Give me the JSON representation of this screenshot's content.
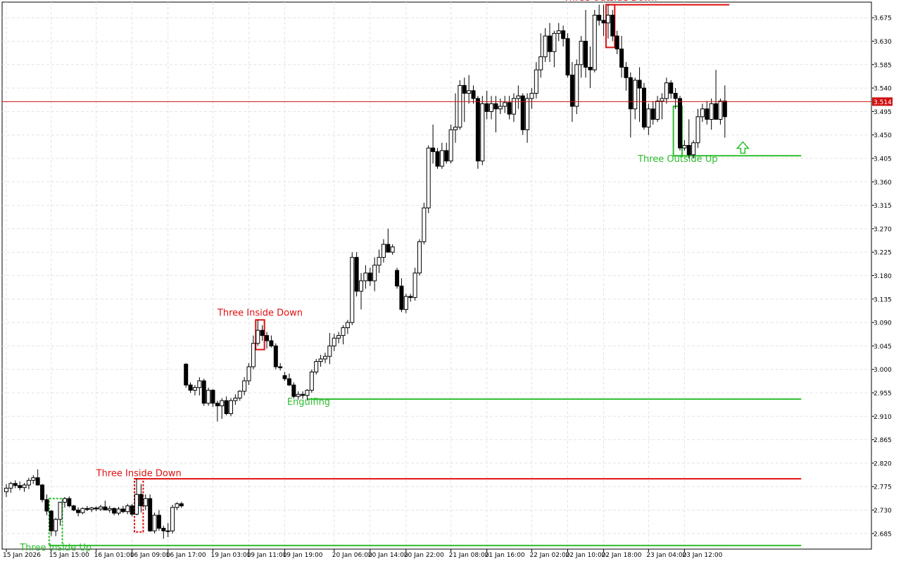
{
  "chart_data": {
    "type": "candlestick",
    "ylim": [
      2.655,
      3.705
    ],
    "grid": true,
    "y_ticks": [
      "3.675",
      "3.630",
      "3.585",
      "3.540",
      "3.495",
      "3.450",
      "3.405",
      "3.360",
      "3.315",
      "3.270",
      "3.225",
      "3.180",
      "3.135",
      "3.090",
      "3.045",
      "3.000",
      "2.955",
      "2.910",
      "2.865",
      "2.820",
      "2.775",
      "2.730",
      "2.685"
    ],
    "x_ticks": [
      {
        "label": "15 Jan 2026",
        "index": 0
      },
      {
        "label": "15 Jan 15:00",
        "index": 10
      },
      {
        "label": "16 Jan 01:00",
        "index": 20
      },
      {
        "label": "16 Jan 09:00",
        "index": 28
      },
      {
        "label": "16 Jan 17:00",
        "index": 36
      },
      {
        "label": "19 Jan 03:00",
        "index": 46
      },
      {
        "label": "19 Jan 11:00",
        "index": 54
      },
      {
        "label": "19 Jan 19:00",
        "index": 62
      },
      {
        "label": "20 Jan 06:00",
        "index": 73
      },
      {
        "label": "20 Jan 14:00",
        "index": 81
      },
      {
        "label": "20 Jan 22:00",
        "index": 89
      },
      {
        "label": "21 Jan 08:00",
        "index": 99
      },
      {
        "label": "21 Jan 16:00",
        "index": 107
      },
      {
        "label": "22 Jan 02:00",
        "index": 117
      },
      {
        "label": "22 Jan 10:00",
        "index": 125
      },
      {
        "label": "22 Jan 18:00",
        "index": 133
      },
      {
        "label": "23 Jan 04:00",
        "index": 143
      },
      {
        "label": "23 Jan 12:00",
        "index": 151
      }
    ],
    "current_price": "3.514",
    "candles": [
      [
        2.765,
        2.78,
        2.755,
        2.772
      ],
      [
        2.772,
        2.784,
        2.763,
        2.781
      ],
      [
        2.781,
        2.787,
        2.772,
        2.777
      ],
      [
        2.777,
        2.785,
        2.768,
        2.773
      ],
      [
        2.773,
        2.782,
        2.765,
        2.778
      ],
      [
        2.778,
        2.792,
        2.77,
        2.787
      ],
      [
        2.787,
        2.797,
        2.78,
        2.792
      ],
      [
        2.792,
        2.808,
        2.777,
        2.778
      ],
      [
        2.778,
        2.78,
        2.745,
        2.75
      ],
      [
        2.75,
        2.76,
        2.72,
        2.728
      ],
      [
        2.728,
        2.73,
        2.68,
        2.69
      ],
      [
        2.69,
        2.715,
        2.68,
        2.712
      ],
      [
        2.712,
        2.735,
        2.7,
        2.745
      ],
      [
        2.745,
        2.755,
        2.735,
        2.752
      ],
      [
        2.752,
        2.756,
        2.735,
        2.738
      ],
      [
        2.738,
        2.74,
        2.728,
        2.73
      ],
      [
        2.73,
        2.735,
        2.718,
        2.725
      ],
      [
        2.725,
        2.735,
        2.722,
        2.733
      ],
      [
        2.733,
        2.738,
        2.728,
        2.731
      ],
      [
        2.731,
        2.736,
        2.726,
        2.734
      ],
      [
        2.734,
        2.737,
        2.728,
        2.732
      ],
      [
        2.732,
        2.74,
        2.728,
        2.736
      ],
      [
        2.736,
        2.748,
        2.73,
        2.73
      ],
      [
        2.73,
        2.738,
        2.725,
        2.733
      ],
      [
        2.733,
        2.735,
        2.72,
        2.724
      ],
      [
        2.724,
        2.736,
        2.72,
        2.732
      ],
      [
        2.732,
        2.738,
        2.724,
        2.727
      ],
      [
        2.727,
        2.742,
        2.722,
        2.738
      ],
      [
        2.738,
        2.742,
        2.718,
        2.722
      ],
      [
        2.722,
        2.79,
        2.72,
        2.76
      ],
      [
        2.76,
        2.78,
        2.725,
        2.738
      ],
      [
        2.738,
        2.76,
        2.73,
        2.752
      ],
      [
        2.752,
        2.76,
        2.688,
        2.69
      ],
      [
        2.69,
        2.725,
        2.685,
        2.72
      ],
      [
        2.72,
        2.73,
        2.69,
        2.695
      ],
      [
        2.695,
        2.7,
        2.675,
        2.69
      ],
      [
        2.69,
        2.705,
        2.678,
        2.69
      ],
      [
        2.69,
        2.74,
        2.685,
        2.735
      ],
      [
        2.735,
        2.745,
        2.73,
        2.742
      ],
      [
        2.742,
        2.746,
        2.734,
        2.738
      ],
      [
        3.01,
        3.012,
        2.965,
        2.97
      ],
      [
        2.97,
        2.975,
        2.955,
        2.96
      ],
      [
        2.96,
        2.97,
        2.95,
        2.965
      ],
      [
        2.965,
        2.985,
        2.95,
        2.978
      ],
      [
        2.978,
        2.982,
        2.93,
        2.935
      ],
      [
        2.935,
        2.965,
        2.93,
        2.96
      ],
      [
        2.96,
        2.962,
        2.928,
        2.935
      ],
      [
        2.935,
        2.94,
        2.9,
        2.93
      ],
      [
        2.93,
        2.945,
        2.905,
        2.94
      ],
      [
        2.94,
        2.948,
        2.912,
        2.915
      ],
      [
        2.915,
        2.945,
        2.91,
        2.94
      ],
      [
        2.94,
        2.952,
        2.932,
        2.945
      ],
      [
        2.945,
        2.96,
        2.94,
        2.958
      ],
      [
        2.958,
        2.985,
        2.95,
        2.978
      ],
      [
        2.978,
        3.012,
        2.97,
        3.005
      ],
      [
        3.005,
        3.065,
        3.0,
        3.05
      ],
      [
        3.05,
        3.095,
        3.045,
        3.075
      ],
      [
        3.075,
        3.085,
        3.055,
        3.065
      ],
      [
        3.065,
        3.072,
        3.04,
        3.055
      ],
      [
        3.055,
        3.065,
        3.042,
        3.045
      ],
      [
        3.045,
        3.05,
        3.0,
        3.005
      ],
      [
        3.005,
        3.012,
        2.998,
        3.003
      ],
      [
        2.988,
        2.995,
        2.978,
        2.982
      ],
      [
        2.982,
        2.992,
        2.968,
        2.97
      ],
      [
        2.97,
        2.975,
        2.944,
        2.948
      ],
      [
        2.948,
        2.958,
        2.942,
        2.952
      ],
      [
        2.952,
        2.958,
        2.944,
        2.95
      ],
      [
        2.95,
        2.962,
        2.94,
        2.96
      ],
      [
        2.96,
        3.0,
        2.955,
        2.995
      ],
      [
        2.995,
        3.02,
        2.99,
        3.015
      ],
      [
        3.015,
        3.028,
        3.005,
        3.02
      ],
      [
        3.02,
        3.032,
        3.012,
        3.025
      ],
      [
        3.025,
        3.07,
        3.01,
        3.045
      ],
      [
        3.045,
        3.068,
        3.035,
        3.06
      ],
      [
        3.06,
        3.072,
        3.05,
        3.065
      ],
      [
        3.065,
        3.085,
        3.048,
        3.08
      ],
      [
        3.08,
        3.095,
        3.068,
        3.09
      ],
      [
        3.09,
        3.225,
        3.085,
        3.215
      ],
      [
        3.215,
        3.225,
        3.14,
        3.15
      ],
      [
        3.15,
        3.185,
        3.115,
        3.17
      ],
      [
        3.17,
        3.2,
        3.155,
        3.185
      ],
      [
        3.185,
        3.195,
        3.16,
        3.17
      ],
      [
        3.17,
        3.215,
        3.15,
        3.2
      ],
      [
        3.2,
        3.23,
        3.185,
        3.215
      ],
      [
        3.215,
        3.25,
        3.205,
        3.24
      ],
      [
        3.24,
        3.27,
        3.23,
        3.225
      ],
      [
        3.225,
        3.24,
        3.22,
        3.235
      ],
      [
        3.19,
        3.195,
        3.155,
        3.16
      ],
      [
        3.16,
        3.175,
        3.11,
        3.115
      ],
      [
        3.115,
        3.145,
        3.108,
        3.14
      ],
      [
        3.14,
        3.145,
        3.13,
        3.138
      ],
      [
        3.138,
        3.195,
        3.132,
        3.185
      ],
      [
        3.185,
        3.25,
        3.18,
        3.245
      ],
      [
        3.245,
        3.32,
        3.24,
        3.31
      ],
      [
        3.31,
        3.43,
        3.3,
        3.425
      ],
      [
        3.425,
        3.47,
        3.395,
        3.418
      ],
      [
        3.418,
        3.425,
        3.385,
        3.39
      ],
      [
        3.39,
        3.435,
        3.385,
        3.42
      ],
      [
        3.42,
        3.435,
        3.395,
        3.4
      ],
      [
        3.4,
        3.47,
        3.395,
        3.46
      ],
      [
        3.46,
        3.53,
        3.435,
        3.465
      ],
      [
        3.465,
        3.555,
        3.46,
        3.545
      ],
      [
        3.545,
        3.56,
        3.475,
        3.53
      ],
      [
        3.53,
        3.565,
        3.51,
        3.535
      ],
      [
        3.535,
        3.545,
        3.51,
        3.52
      ],
      [
        3.52,
        3.525,
        3.385,
        3.4
      ],
      [
        3.4,
        3.525,
        3.392,
        3.51
      ],
      [
        3.51,
        3.535,
        3.48,
        3.495
      ],
      [
        3.495,
        3.525,
        3.48,
        3.51
      ],
      [
        3.51,
        3.525,
        3.455,
        3.5
      ],
      [
        3.5,
        3.52,
        3.49,
        3.505
      ],
      [
        3.505,
        3.525,
        3.492,
        3.512
      ],
      [
        3.512,
        3.525,
        3.48,
        3.49
      ],
      [
        3.49,
        3.53,
        3.475,
        3.52
      ],
      [
        3.52,
        3.545,
        3.5,
        3.525
      ],
      [
        3.525,
        3.53,
        3.45,
        3.46
      ],
      [
        3.46,
        3.53,
        3.435,
        3.52
      ],
      [
        3.52,
        3.54,
        3.5,
        3.53
      ],
      [
        3.53,
        3.59,
        3.52,
        3.575
      ],
      [
        3.575,
        3.645,
        3.56,
        3.6
      ],
      [
        3.6,
        3.655,
        3.59,
        3.64
      ],
      [
        3.64,
        3.665,
        3.59,
        3.61
      ],
      [
        3.61,
        3.65,
        3.58,
        3.645
      ],
      [
        3.645,
        3.665,
        3.63,
        3.65
      ],
      [
        3.65,
        3.66,
        3.62,
        3.635
      ],
      [
        3.635,
        3.645,
        3.56,
        3.565
      ],
      [
        3.565,
        3.59,
        3.475,
        3.505
      ],
      [
        3.505,
        3.595,
        3.49,
        3.585
      ],
      [
        3.585,
        3.64,
        3.56,
        3.63
      ],
      [
        3.63,
        3.69,
        3.56,
        3.58
      ],
      [
        3.58,
        3.62,
        3.54,
        3.575
      ],
      [
        3.575,
        3.69,
        3.57,
        3.68
      ],
      [
        3.68,
        3.7,
        3.66,
        3.67
      ],
      [
        3.67,
        3.7,
        3.64,
        3.665
      ],
      [
        3.665,
        3.7,
        3.635,
        3.68
      ],
      [
        3.68,
        3.69,
        3.63,
        3.64
      ],
      [
        3.64,
        3.65,
        3.605,
        3.615
      ],
      [
        3.615,
        3.64,
        3.56,
        3.58
      ],
      [
        3.58,
        3.59,
        3.535,
        3.56
      ],
      [
        3.56,
        3.57,
        3.445,
        3.5
      ],
      [
        3.5,
        3.56,
        3.48,
        3.555
      ],
      [
        3.555,
        3.58,
        3.475,
        3.54
      ],
      [
        3.54,
        3.55,
        3.46,
        3.465
      ],
      [
        3.465,
        3.51,
        3.45,
        3.5
      ],
      [
        3.5,
        3.515,
        3.47,
        3.48
      ],
      [
        3.48,
        3.525,
        3.475,
        3.515
      ],
      [
        3.515,
        3.53,
        3.48,
        3.52
      ],
      [
        3.52,
        3.56,
        3.51,
        3.55
      ],
      [
        3.55,
        3.555,
        3.52,
        3.53
      ],
      [
        3.53,
        3.54,
        3.5,
        3.52
      ],
      [
        3.52,
        3.525,
        3.42,
        3.425
      ],
      [
        3.425,
        3.44,
        3.42,
        3.43
      ],
      [
        3.43,
        3.48,
        3.405,
        3.412
      ],
      [
        3.412,
        3.44,
        3.405,
        3.435
      ],
      [
        3.435,
        3.5,
        3.425,
        3.485
      ],
      [
        3.485,
        3.51,
        3.475,
        3.5
      ],
      [
        3.5,
        3.515,
        3.47,
        3.48
      ],
      [
        3.48,
        3.52,
        3.46,
        3.51
      ],
      [
        3.51,
        3.575,
        3.485,
        3.48
      ],
      [
        3.48,
        3.52,
        3.47,
        3.515
      ],
      [
        3.515,
        3.545,
        3.445,
        3.485
      ]
    ],
    "annotations": [
      {
        "text": "Three Outside Down",
        "color": "#e01010",
        "box_from": 134,
        "box_to": 135,
        "box_lo": 3.618,
        "box_hi": 3.7,
        "line_to": 161,
        "line_y": 3.7,
        "label_y": 3.708
      },
      {
        "text": "Three Outside Up",
        "color": "#2ebd2e",
        "box_from": 149,
        "box_to": 150,
        "box_lo": 3.41,
        "box_hi": 3.505,
        "line_to": 177,
        "line_y": 3.41,
        "label_y": 3.398
      },
      {
        "text": "Three Inside Down",
        "color": "#e01010",
        "box_from": 56,
        "box_to": 57,
        "box_lo": 3.038,
        "box_hi": 3.095,
        "line_to": null,
        "line_y": null,
        "label_y": 3.103
      },
      {
        "text": "Engulfing",
        "color": "#2ebd2e",
        "box_from": null,
        "box_to": null,
        "box_lo": null,
        "box_hi": null,
        "line_from": 67,
        "line_to": 177,
        "line_y": 2.943,
        "label_y": 2.932
      },
      {
        "text": "Three Inside Down",
        "color": "#e01010",
        "box_from": 29,
        "box_to": 30,
        "box_lo": 2.688,
        "box_hi": 2.79,
        "line_to": 177,
        "line_y": 2.79,
        "label_y": 2.795
      },
      {
        "text": "Three Inside Up",
        "color": "#2ebd2e",
        "box_from": 10,
        "box_to": 12,
        "box_lo": 2.662,
        "box_hi": 2.752,
        "line_to": 177,
        "line_y": 2.662,
        "label_y": 2.652
      }
    ],
    "arrow": {
      "index": 164,
      "value": 3.415,
      "color": "#2ebd2e"
    }
  }
}
